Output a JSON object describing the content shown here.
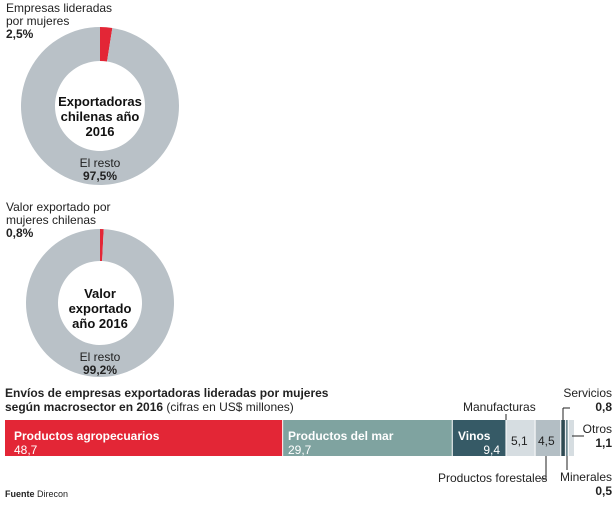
{
  "chart_data": [
    {
      "type": "pie",
      "center_title": [
        "Exportadoras",
        "chilenas año",
        "2016"
      ],
      "slices": [
        {
          "name_lines": [
            "Empresas lideradas",
            "por mujeres"
          ],
          "value": 2.5,
          "value_label": "2,5%",
          "color": "#e32636"
        },
        {
          "name_lines": [
            "El resto"
          ],
          "value": 97.5,
          "value_label": "97,5%",
          "color": "#b9c1c7"
        }
      ]
    },
    {
      "type": "pie",
      "center_title": [
        "Valor",
        "exportado",
        "año 2016"
      ],
      "slices": [
        {
          "name_lines": [
            "Valor exportado por",
            "mujeres chilenas"
          ],
          "value": 0.8,
          "value_label": "0,8%",
          "color": "#e32636"
        },
        {
          "name_lines": [
            "El resto"
          ],
          "value": 99.2,
          "value_label": "99,2%",
          "color": "#b9c1c7"
        }
      ]
    },
    {
      "type": "bar",
      "orientation": "stacked-horizontal",
      "title": "Envíos de empresas exportadoras lideradas por mujeres",
      "title_line2": "según macrosector en 2016",
      "title_note": "(cifras en US$ millones)",
      "segments": [
        {
          "name": "Productos agropecuarios",
          "value": 48.7,
          "value_label": "48,7",
          "color": "#e32636"
        },
        {
          "name": "Productos del mar",
          "value": 29.7,
          "value_label": "29,7",
          "color": "#7fa3a0"
        },
        {
          "name": "Vinos",
          "value": 9.4,
          "value_label": "9,4",
          "color": "#365a66"
        },
        {
          "name": "Manufacturas",
          "value": 5.1,
          "value_label": "5,1",
          "color": "#d6dde1"
        },
        {
          "name": "Productos forestales",
          "value": 4.5,
          "value_label": "4,5",
          "color": "#b3bec4"
        },
        {
          "name": "Servicios",
          "value": 0.8,
          "value_label": "0,8",
          "color": "#2e4a52"
        },
        {
          "name": "Minerales",
          "value": 0.5,
          "value_label": "0,5",
          "color": "#6f8a92"
        },
        {
          "name": "Otros",
          "value": 1.1,
          "value_label": "1,1",
          "color": "#d6dde1"
        }
      ]
    }
  ],
  "source": {
    "label": "Fuente",
    "text": "Direcon"
  }
}
